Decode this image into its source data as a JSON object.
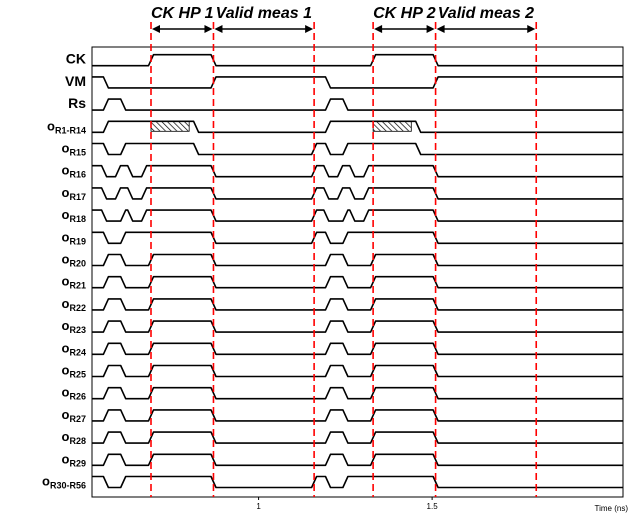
{
  "chart_data": {
    "type": "line",
    "title": "",
    "xlabel": "Time (ns)",
    "ylabel": "",
    "x_ticks": [
      {
        "label": "1",
        "value": 1.0
      },
      {
        "label": "1.5",
        "value": 1.5
      }
    ],
    "xlim": [
      0.52,
      2.05
    ],
    "clock_period_ns": 0.64,
    "period_starts_ns": [
      0.52,
      1.16
    ],
    "markers": [
      {
        "label": "CK HP 1",
        "start": 0.69,
        "end": 0.87
      },
      {
        "label": "Valid meas 1",
        "start": 0.87,
        "end": 1.16
      },
      {
        "label": "CK HP 2",
        "start": 1.33,
        "end": 1.51
      },
      {
        "label": "Valid meas 2",
        "start": 1.51,
        "end": 1.8
      }
    ],
    "marker_lines_ns": [
      0.69,
      0.87,
      1.16,
      1.33,
      1.51,
      1.8
    ],
    "grid": false,
    "signals": [
      {
        "name": "CK",
        "sub": "",
        "period_levels": [
          [
            0,
            0
          ],
          [
            0.17,
            1
          ],
          [
            0.35,
            0
          ]
        ]
      },
      {
        "name": "VM",
        "sub": "",
        "period_levels": [
          [
            0,
            1
          ],
          [
            0.04,
            0
          ],
          [
            0.35,
            1
          ]
        ]
      },
      {
        "name": "Rs",
        "sub": "",
        "period_levels": [
          [
            0,
            0
          ],
          [
            0.04,
            1
          ],
          [
            0.09,
            0
          ]
        ]
      },
      {
        "name": "o",
        "sub": "R1-R14",
        "period_levels": [
          [
            0,
            0
          ],
          [
            0.04,
            1
          ],
          [
            0.17,
            1
          ],
          [
            0.3,
            0
          ]
        ],
        "hatch": [
          0.17,
          0.28
        ]
      },
      {
        "name": "o",
        "sub": "R15",
        "period_levels": [
          [
            0,
            1
          ],
          [
            0.04,
            0
          ],
          [
            0.09,
            1
          ],
          [
            0.3,
            0
          ]
        ]
      },
      {
        "name": "o",
        "sub": "R16",
        "period_levels": [
          [
            0,
            1
          ],
          [
            0.035,
            0
          ],
          [
            0.075,
            1
          ],
          [
            0.11,
            0
          ],
          [
            0.15,
            1
          ],
          [
            0.35,
            0
          ]
        ]
      },
      {
        "name": "o",
        "sub": "R17",
        "period_levels": [
          [
            0,
            1
          ],
          [
            0.035,
            0
          ],
          [
            0.075,
            1
          ],
          [
            0.11,
            0
          ],
          [
            0.15,
            1
          ],
          [
            0.35,
            0
          ]
        ]
      },
      {
        "name": "o",
        "sub": "R18",
        "period_levels": [
          [
            0,
            1
          ],
          [
            0.035,
            0
          ],
          [
            0.09,
            1
          ],
          [
            0.11,
            0
          ],
          [
            0.15,
            1
          ],
          [
            0.35,
            0
          ]
        ]
      },
      {
        "name": "o",
        "sub": "R19",
        "period_levels": [
          [
            0,
            1
          ],
          [
            0.04,
            0
          ],
          [
            0.09,
            1
          ],
          [
            0.35,
            0
          ]
        ]
      },
      {
        "name": "o",
        "sub": "R20",
        "period_levels": [
          [
            0,
            0
          ],
          [
            0.04,
            1
          ],
          [
            0.09,
            0
          ],
          [
            0.17,
            1
          ],
          [
            0.35,
            0
          ]
        ]
      },
      {
        "name": "o",
        "sub": "R21",
        "period_levels": [
          [
            0,
            0
          ],
          [
            0.04,
            1
          ],
          [
            0.09,
            0
          ],
          [
            0.17,
            1
          ],
          [
            0.35,
            0
          ]
        ]
      },
      {
        "name": "o",
        "sub": "R22",
        "period_levels": [
          [
            0,
            0
          ],
          [
            0.04,
            1
          ],
          [
            0.09,
            0
          ],
          [
            0.17,
            1
          ],
          [
            0.35,
            0
          ]
        ]
      },
      {
        "name": "o",
        "sub": "R23",
        "period_levels": [
          [
            0,
            0
          ],
          [
            0.04,
            1
          ],
          [
            0.09,
            0
          ],
          [
            0.17,
            1
          ],
          [
            0.35,
            0
          ]
        ]
      },
      {
        "name": "o",
        "sub": "R24",
        "period_levels": [
          [
            0,
            0
          ],
          [
            0.04,
            1
          ],
          [
            0.09,
            0
          ],
          [
            0.17,
            1
          ],
          [
            0.35,
            0
          ]
        ]
      },
      {
        "name": "o",
        "sub": "R25",
        "period_levels": [
          [
            0,
            0
          ],
          [
            0.04,
            1
          ],
          [
            0.09,
            0
          ],
          [
            0.17,
            1
          ],
          [
            0.35,
            0
          ]
        ]
      },
      {
        "name": "o",
        "sub": "R26",
        "period_levels": [
          [
            0,
            0
          ],
          [
            0.04,
            1
          ],
          [
            0.09,
            0
          ],
          [
            0.17,
            1
          ],
          [
            0.35,
            0
          ]
        ]
      },
      {
        "name": "o",
        "sub": "R27",
        "period_levels": [
          [
            0,
            0
          ],
          [
            0.04,
            1
          ],
          [
            0.09,
            0
          ],
          [
            0.17,
            1
          ],
          [
            0.35,
            0
          ]
        ]
      },
      {
        "name": "o",
        "sub": "R28",
        "period_levels": [
          [
            0,
            0
          ],
          [
            0.04,
            1
          ],
          [
            0.09,
            0
          ],
          [
            0.17,
            1
          ],
          [
            0.35,
            0
          ]
        ]
      },
      {
        "name": "o",
        "sub": "R29",
        "period_levels": [
          [
            0,
            0
          ],
          [
            0.04,
            1
          ],
          [
            0.09,
            0
          ],
          [
            0.17,
            1
          ],
          [
            0.35,
            0
          ]
        ]
      },
      {
        "name": "o",
        "sub": "R30-R56",
        "period_levels": [
          [
            0,
            1
          ],
          [
            0.04,
            0
          ],
          [
            0.09,
            1
          ],
          [
            0.35,
            0
          ]
        ]
      }
    ]
  },
  "colors": {
    "trace": "#000000",
    "marker_line": "#ff0000",
    "background": "#ffffff"
  }
}
